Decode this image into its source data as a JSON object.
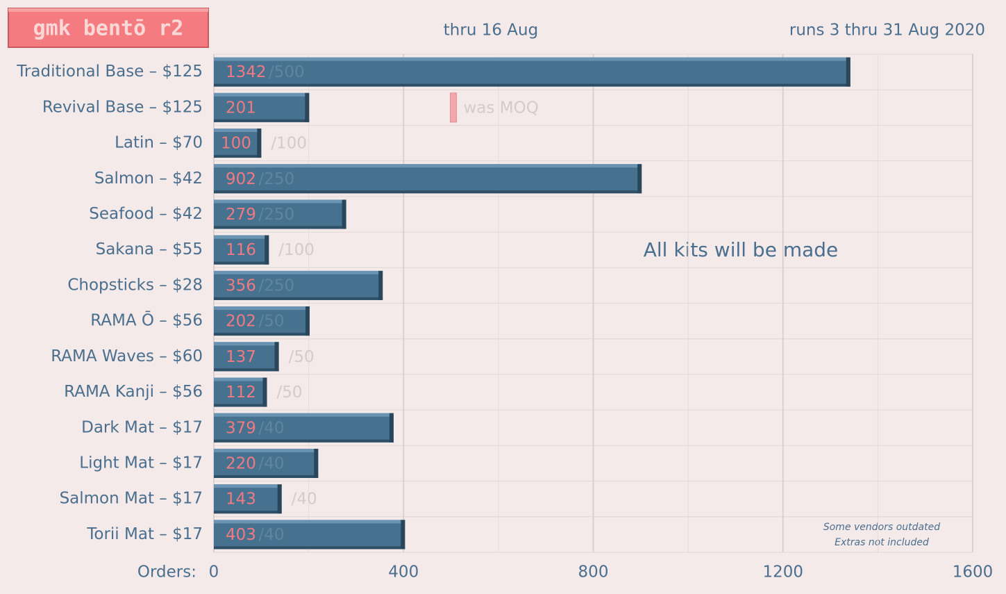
{
  "chart_data": {
    "type": "bar",
    "orientation": "horizontal",
    "title": "gmk bentō r2",
    "subtitle": "thru 16 Aug",
    "run_note": "runs 3 thru 31 Aug 2020",
    "annotation": "All kits will be made",
    "notes": [
      "Some vendors outdated",
      "Extras not included"
    ],
    "x_label": "Orders:",
    "categories": [
      "Traditional Base – $125",
      "Revival Base – $125",
      "Latin – $70",
      "Salmon – $42",
      "Seafood – $42",
      "Sakana – $55",
      "Chopsticks – $28",
      "RAMA Ō – $56",
      "RAMA Waves – $60",
      "RAMA Kanji – $56",
      "Dark Mat – $17",
      "Light Mat – $17",
      "Salmon Mat – $17",
      "Torii Mat – $17"
    ],
    "series": [
      {
        "name": "Orders",
        "color": "#46718f",
        "values": [
          1342,
          201,
          100,
          902,
          279,
          116,
          356,
          202,
          137,
          112,
          379,
          220,
          143,
          403
        ]
      }
    ],
    "moq": {
      "values": [
        500,
        null,
        100,
        250,
        250,
        100,
        250,
        50,
        50,
        50,
        40,
        40,
        40,
        40
      ],
      "value_labels": [
        "/500",
        null,
        "/100",
        "/250",
        "/250",
        "/100",
        "/250",
        "/50",
        "/50",
        "/50",
        "/40",
        "/40",
        "/40",
        "/40"
      ]
    },
    "old_moq": {
      "text": "was MOQ",
      "value": 500
    },
    "xlim": [
      0,
      1600
    ],
    "xticks": [
      0,
      400,
      800,
      1200,
      1600
    ],
    "minor_grid": [
      200,
      600,
      1000,
      1400
    ],
    "grid": true
  }
}
